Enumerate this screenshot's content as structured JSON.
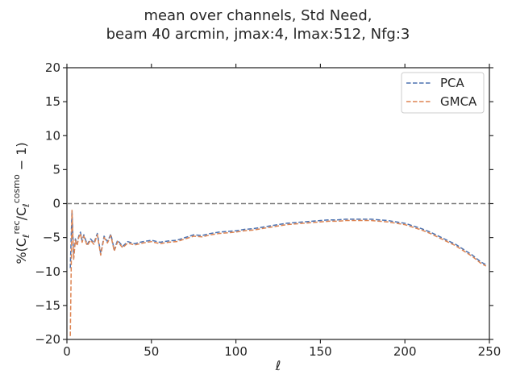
{
  "chart_data": {
    "type": "line",
    "title_line1": "mean over channels, Std Need,",
    "title_line2": "beam 40 arcmin, jmax:4, lmax:512, Nfg:3",
    "xlabel": "ℓ",
    "ylabel_prefix": "%(C",
    "ylabel_sub1": "ℓ",
    "ylabel_sup1": "rec",
    "ylabel_mid": "/C",
    "ylabel_sub2": "ℓ",
    "ylabel_sup2": "cosmo",
    "ylabel_suffix": " − 1)",
    "xlim": [
      0,
      250
    ],
    "ylim": [
      -20,
      20
    ],
    "xticks": [
      0,
      50,
      100,
      150,
      200,
      250
    ],
    "yticks": [
      -20,
      -15,
      -10,
      -5,
      0,
      5,
      10,
      15,
      20
    ],
    "xtick_labels": [
      "0",
      "50",
      "100",
      "150",
      "200",
      "250"
    ],
    "ytick_labels": [
      "−20",
      "−15",
      "−10",
      "−5",
      "0",
      "5",
      "10",
      "15",
      "20"
    ],
    "reference_line_y": 0,
    "legend_position": "top-right",
    "series": [
      {
        "name": "PCA",
        "color": "#4c72b0",
        "x": [
          2,
          3,
          4,
          5,
          6,
          7,
          8,
          9,
          10,
          12,
          14,
          16,
          18,
          20,
          22,
          24,
          26,
          28,
          30,
          33,
          36,
          40,
          45,
          50,
          55,
          60,
          65,
          70,
          75,
          80,
          85,
          90,
          95,
          100,
          105,
          110,
          115,
          120,
          125,
          130,
          135,
          140,
          145,
          150,
          155,
          160,
          165,
          170,
          175,
          180,
          185,
          190,
          195,
          200,
          205,
          210,
          215,
          220,
          225,
          230,
          235,
          240,
          245,
          248
        ],
        "y": [
          -9.5,
          -1,
          -8,
          -5.2,
          -6,
          -4.8,
          -4.2,
          -5.5,
          -4.6,
          -6,
          -5.2,
          -5.8,
          -4.4,
          -7.4,
          -4.8,
          -5.6,
          -4.5,
          -6.8,
          -5.4,
          -6.3,
          -5.6,
          -5.9,
          -5.6,
          -5.4,
          -5.7,
          -5.5,
          -5.4,
          -5.0,
          -4.6,
          -4.7,
          -4.4,
          -4.2,
          -4.1,
          -4.0,
          -3.8,
          -3.7,
          -3.5,
          -3.3,
          -3.1,
          -2.9,
          -2.8,
          -2.7,
          -2.6,
          -2.5,
          -2.4,
          -2.4,
          -2.3,
          -2.3,
          -2.3,
          -2.3,
          -2.4,
          -2.5,
          -2.7,
          -2.9,
          -3.3,
          -3.7,
          -4.2,
          -4.8,
          -5.4,
          -6.0,
          -6.8,
          -7.6,
          -8.6,
          -9.0
        ]
      },
      {
        "name": "GMCA",
        "color": "#dd8452",
        "x": [
          2,
          3,
          4,
          5,
          6,
          7,
          8,
          9,
          10,
          12,
          14,
          16,
          18,
          20,
          22,
          24,
          26,
          28,
          30,
          33,
          36,
          40,
          45,
          50,
          55,
          60,
          65,
          70,
          75,
          80,
          85,
          90,
          95,
          100,
          105,
          110,
          115,
          120,
          125,
          130,
          135,
          140,
          145,
          150,
          155,
          160,
          165,
          170,
          175,
          180,
          185,
          190,
          195,
          200,
          205,
          210,
          215,
          220,
          225,
          230,
          235,
          240,
          245,
          248
        ],
        "y": [
          -19.5,
          -1,
          -8.2,
          -5.4,
          -6.2,
          -5.0,
          -4.4,
          -5.7,
          -4.8,
          -6.2,
          -5.4,
          -6.0,
          -4.6,
          -7.6,
          -5.0,
          -5.8,
          -4.7,
          -7.0,
          -5.6,
          -6.5,
          -5.8,
          -6.1,
          -5.8,
          -5.6,
          -5.9,
          -5.7,
          -5.6,
          -5.2,
          -4.8,
          -4.9,
          -4.6,
          -4.4,
          -4.3,
          -4.2,
          -4.0,
          -3.9,
          -3.7,
          -3.5,
          -3.3,
          -3.1,
          -3.0,
          -2.9,
          -2.8,
          -2.7,
          -2.6,
          -2.6,
          -2.5,
          -2.5,
          -2.5,
          -2.5,
          -2.6,
          -2.7,
          -2.9,
          -3.1,
          -3.5,
          -3.9,
          -4.4,
          -5.0,
          -5.6,
          -6.2,
          -7.0,
          -7.8,
          -8.8,
          -9.2
        ]
      }
    ]
  }
}
